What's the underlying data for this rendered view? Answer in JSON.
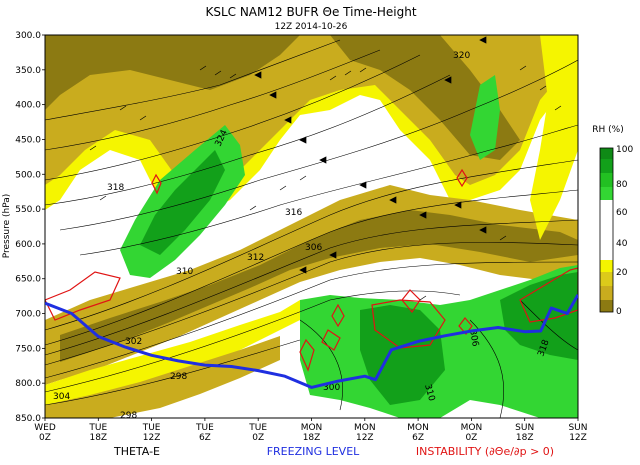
{
  "header": {
    "title": "KSLC NAM12 BUFR Θe Time-Height",
    "subtitle": "12Z 2014-10-26"
  },
  "footer": {
    "theta_label": "THETA-E",
    "freezing_label": "FREEZING LEVEL",
    "instability_label": "INSTABILITY (∂Θe/∂p > 0)"
  },
  "colors": {
    "freezing": "#1f2fe0",
    "instability": "#e01414",
    "rh_green_dark": "#12a01a",
    "rh_green_light": "#33d633",
    "rh_yellow": "#f5f500",
    "rh_olive_light": "#c9ac1e",
    "rh_olive_dark": "#8c7a12"
  },
  "chart_data": {
    "type": "heatmap",
    "title": "KSLC NAM12 BUFR Θe Time-Height",
    "subtitle": "12Z 2014-10-26",
    "ylabel": "Pressure (hPa)",
    "ylim": [
      850,
      300
    ],
    "y_ticks": [
      "300.0",
      "350.0",
      "400.0",
      "450.0",
      "500.0",
      "550.0",
      "600.0",
      "650.0",
      "700.0",
      "750.0",
      "800.0",
      "850.0"
    ],
    "x_ticks": [
      {
        "day": "WED",
        "hour": "0Z"
      },
      {
        "day": "TUE",
        "hour": "18Z"
      },
      {
        "day": "TUE",
        "hour": "12Z"
      },
      {
        "day": "TUE",
        "hour": "6Z"
      },
      {
        "day": "TUE",
        "hour": "0Z"
      },
      {
        "day": "MON",
        "hour": "18Z"
      },
      {
        "day": "MON",
        "hour": "12Z"
      },
      {
        "day": "MON",
        "hour": "6Z"
      },
      {
        "day": "MON",
        "hour": "0Z"
      },
      {
        "day": "SUN",
        "hour": "18Z"
      },
      {
        "day": "SUN",
        "hour": "12Z"
      }
    ],
    "colorbar": {
      "label": "RH (%)",
      "ticks": [
        "100",
        "80",
        "60",
        "40",
        "20",
        "0"
      ]
    },
    "contour_labels": [
      "320",
      "324",
      "318",
      "316",
      "312",
      "310",
      "306",
      "302",
      "298",
      "304",
      "300",
      "306",
      "310",
      "318",
      "298"
    ],
    "freezing_level": [
      {
        "x": 0,
        "p": 685
      },
      {
        "x": 0.5,
        "p": 700
      },
      {
        "x": 1,
        "p": 733
      },
      {
        "x": 1.5,
        "p": 748
      },
      {
        "x": 2,
        "p": 760
      },
      {
        "x": 2.5,
        "p": 768
      },
      {
        "x": 3,
        "p": 774
      },
      {
        "x": 3.5,
        "p": 776
      },
      {
        "x": 4,
        "p": 782
      },
      {
        "x": 4.5,
        "p": 790
      },
      {
        "x": 5,
        "p": 806
      },
      {
        "x": 5.5,
        "p": 797
      },
      {
        "x": 6,
        "p": 790
      },
      {
        "x": 6.2,
        "p": 795
      },
      {
        "x": 6.5,
        "p": 752
      },
      {
        "x": 7,
        "p": 740
      },
      {
        "x": 7.5,
        "p": 732
      },
      {
        "x": 8,
        "p": 725
      },
      {
        "x": 8.5,
        "p": 720
      },
      {
        "x": 9,
        "p": 726
      },
      {
        "x": 9.3,
        "p": 725
      },
      {
        "x": 9.5,
        "p": 692
      },
      {
        "x": 9.8,
        "p": 700
      },
      {
        "x": 10,
        "p": 673
      }
    ]
  }
}
